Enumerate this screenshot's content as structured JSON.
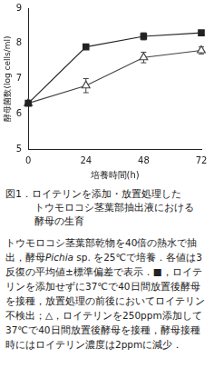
{
  "chart_data": {
    "type": "line",
    "x": [
      0,
      24,
      48,
      72
    ],
    "x_label": "培養時間(h)",
    "y_label": "酵母菌数(log cells/ml)",
    "xlim": [
      0,
      72
    ],
    "xticks": [
      0,
      24,
      48,
      72
    ],
    "ylim": [
      5,
      9
    ],
    "yticks": [
      5,
      6,
      7,
      8,
      9
    ],
    "grid": false,
    "series": [
      {
        "color": "#222222",
        "marker": "square",
        "line_style": "solid",
        "values": [
          6.3,
          7.9,
          8.2,
          8.3
        ],
        "errors": [
          0.05,
          0.05,
          0.1,
          0.05
        ]
      },
      {
        "color": "#444444",
        "marker": "triangle",
        "line_style": "solid",
        "values": [
          6.3,
          6.8,
          7.6,
          7.8
        ],
        "errors": [
          0.05,
          0.2,
          0.15,
          0.1
        ]
      }
    ]
  },
  "figure_title": [
    "図1．ロイテリンを添加・放置処理した",
    "トウモロコシ茎葉部抽出液における",
    "酵母の生育"
  ],
  "caption": [
    {
      "text": "トウモロコシ茎葉部乾物を40倍の熱水で抽出，酵母"
    },
    {
      "text": "Pichia",
      "style": "italic"
    },
    {
      "text": " sp. を25℃で培養．各値は3反復の平均値±標準偏差で表示．■，ロイテリンを添加せずに37℃で40日間放置後酵母を接種，放置処理の前後においてロイテリン不検出；△，ロイテリンを250ppm添加して37℃で40日間放置後酵母を接種，酵母接種時にはロイテリン濃度は2ppmに減少．"
    }
  ]
}
